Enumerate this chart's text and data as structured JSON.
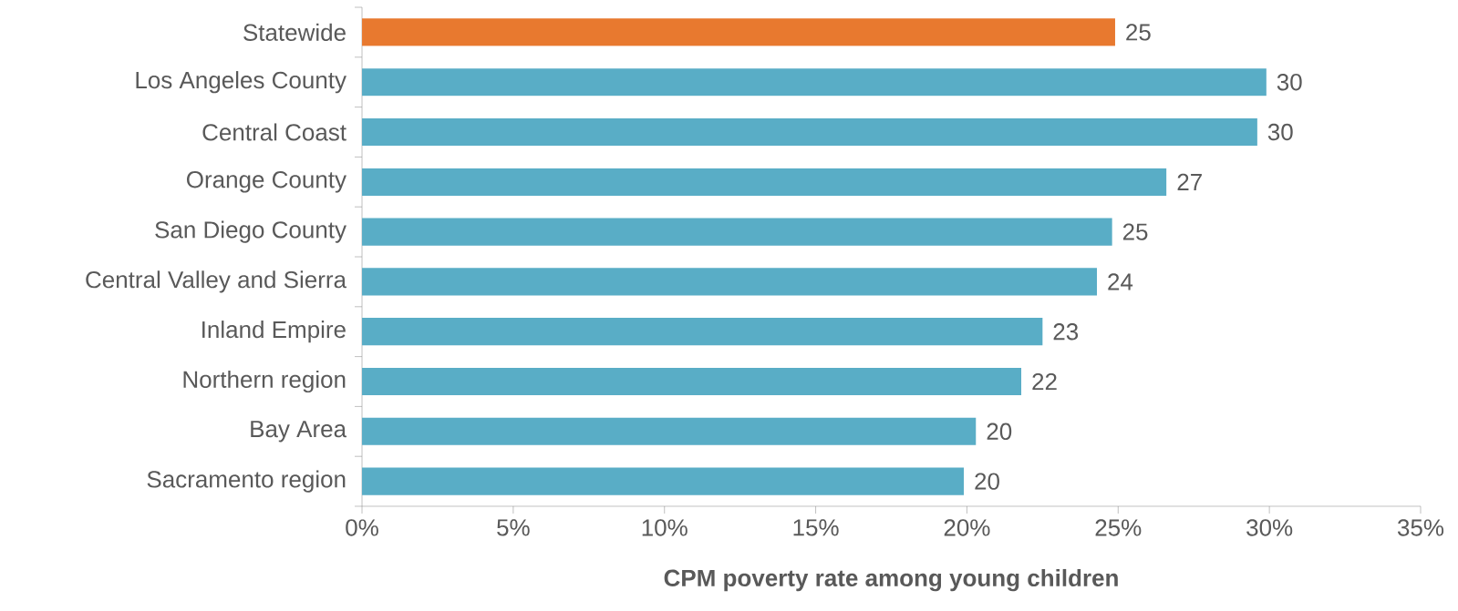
{
  "chart_data": {
    "type": "bar",
    "orientation": "horizontal",
    "xlabel": "CPM poverty rate among young children",
    "categories": [
      "Statewide",
      "Los Angeles County",
      "Central Coast",
      "Orange County",
      "San Diego County",
      "Central Valley and Sierra",
      "Inland Empire",
      "Northern region",
      "Bay Area",
      "Sacramento region"
    ],
    "values": [
      24.9,
      29.9,
      29.6,
      26.6,
      24.8,
      24.3,
      22.5,
      21.8,
      20.3,
      19.9
    ],
    "value_labels": [
      "25",
      "30",
      "30",
      "27",
      "25",
      "24",
      "23",
      "22",
      "20",
      "20"
    ],
    "colors": [
      "#e8792f",
      "#59adc6",
      "#59adc6",
      "#59adc6",
      "#59adc6",
      "#59adc6",
      "#59adc6",
      "#59adc6",
      "#59adc6",
      "#59adc6"
    ],
    "xlim": [
      0,
      35
    ],
    "xticks": [
      {
        "value": 0,
        "label": "0%"
      },
      {
        "value": 5,
        "label": "5%"
      },
      {
        "value": 10,
        "label": "10%"
      },
      {
        "value": 15,
        "label": "15%"
      },
      {
        "value": 20,
        "label": "20%"
      },
      {
        "value": 25,
        "label": "25%"
      },
      {
        "value": 30,
        "label": "30%"
      },
      {
        "value": 35,
        "label": "35%"
      }
    ]
  }
}
